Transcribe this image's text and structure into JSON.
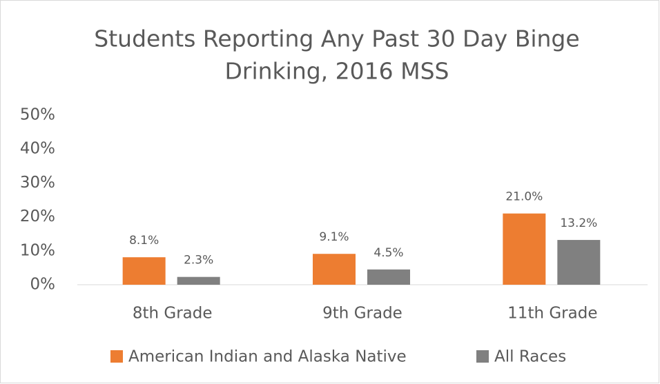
{
  "chart_data": {
    "type": "bar",
    "title": [
      "Students Reporting Any Past 30 Day Binge",
      "Drinking, 2016 MSS"
    ],
    "categories": [
      "8th Grade",
      "9th Grade",
      "11th Grade"
    ],
    "series": [
      {
        "name": "American Indian and Alaska Native",
        "color": "#ed7d31",
        "values": [
          8.1,
          9.1,
          21.0
        ],
        "value_labels": [
          "8.1%",
          "9.1%",
          "21.0%"
        ]
      },
      {
        "name": "All Races",
        "color": "#808080",
        "values": [
          2.3,
          4.5,
          13.2
        ],
        "value_labels": [
          "2.3%",
          "4.5%",
          "13.2%"
        ]
      }
    ],
    "ylim": [
      0,
      50
    ],
    "yticks": [
      {
        "value": 0,
        "label": "0%"
      },
      {
        "value": 10,
        "label": "10%"
      },
      {
        "value": 20,
        "label": "20%"
      },
      {
        "value": 30,
        "label": "30%"
      },
      {
        "value": 40,
        "label": "40%"
      },
      {
        "value": 50,
        "label": "50%"
      }
    ],
    "grid": false,
    "legend": "bottom"
  }
}
